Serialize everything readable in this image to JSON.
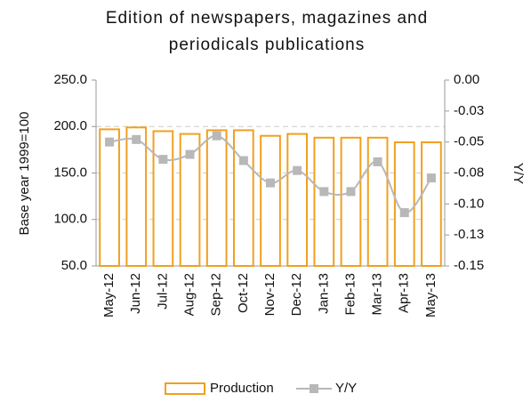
{
  "chart_data": {
    "type": "bar_line",
    "title": "Edition of newspapers, magazines and periodicals publications",
    "ylabel": "Base year 1999=100",
    "y2label": "Y/Y",
    "categories": [
      "May-12",
      "Jun-12",
      "Jul-12",
      "Aug-12",
      "Sep-12",
      "Oct-12",
      "Nov-12",
      "Dec-12",
      "Jan-13",
      "Feb-13",
      "Mar-13",
      "Apr-13",
      "May-13"
    ],
    "series": [
      {
        "name": "Production",
        "color": "#f0a020",
        "type": "bar",
        "values": [
          197,
          199,
          195,
          192,
          196,
          196,
          190,
          192,
          188,
          188,
          188,
          183,
          183
        ]
      },
      {
        "name": "Y/Y",
        "color": "#b8b8b8",
        "type": "line",
        "axis": "y2",
        "values": [
          -0.05,
          -0.048,
          -0.064,
          -0.06,
          -0.045,
          -0.065,
          -0.083,
          -0.073,
          -0.09,
          -0.09,
          -0.066,
          -0.107,
          -0.079
        ]
      }
    ],
    "ylim": [
      50,
      250
    ],
    "yticks": [
      {
        "value": 50,
        "label": "50.0"
      },
      {
        "value": 100,
        "label": "100.0"
      },
      {
        "value": 150,
        "label": "150.0"
      },
      {
        "value": 200,
        "label": "200.0"
      },
      {
        "value": 250,
        "label": "250.0"
      }
    ],
    "y2lim": [
      -0.15,
      0
    ],
    "y2ticks": [
      {
        "value": -0.15,
        "label": "-0.15"
      },
      {
        "value": -0.125,
        "label": "-0.13"
      },
      {
        "value": -0.1,
        "label": "-0.10"
      },
      {
        "value": -0.075,
        "label": "-0.08"
      },
      {
        "value": -0.05,
        "label": "-0.05"
      },
      {
        "value": -0.025,
        "label": "-0.03"
      },
      {
        "value": 0,
        "label": "0.00"
      }
    ],
    "grid": true
  }
}
